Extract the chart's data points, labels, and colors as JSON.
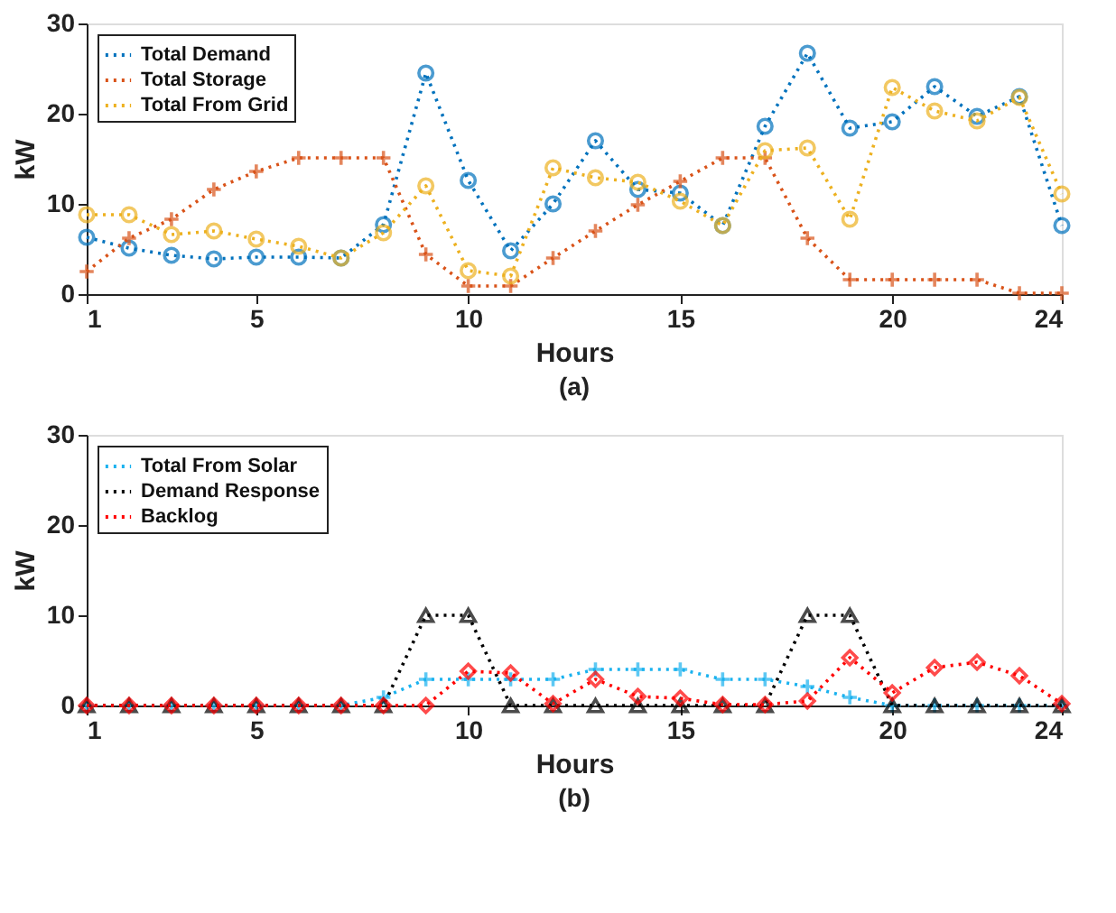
{
  "chart_data": [
    {
      "type": "line",
      "xlabel": "Hours",
      "ylabel": "kW",
      "annotations": [
        "(a)"
      ],
      "x": [
        1,
        2,
        3,
        4,
        5,
        6,
        7,
        8,
        9,
        10,
        11,
        12,
        13,
        14,
        15,
        16,
        17,
        18,
        19,
        20,
        21,
        22,
        23,
        24
      ],
      "xlim": [
        1,
        24
      ],
      "xticks": [
        1,
        5,
        10,
        15,
        20,
        24
      ],
      "ylim": [
        0,
        30
      ],
      "yticks": [
        0,
        10,
        20,
        30
      ],
      "legend": "top left",
      "line_style": "dotted",
      "grid": false,
      "series": [
        {
          "name": "Total Demand",
          "color": "#0072bd",
          "marker": "circle",
          "values": [
            6.3,
            5.1,
            4.3,
            3.9,
            4.1,
            4.1,
            4.0,
            7.7,
            24.5,
            12.6,
            4.8,
            10.0,
            17.0,
            11.6,
            11.2,
            7.6,
            18.6,
            26.7,
            18.4,
            19.1,
            23.0,
            19.7,
            21.9,
            7.6
          ]
        },
        {
          "name": "Total Storage",
          "color": "#d95319",
          "marker": "cross",
          "values": [
            2.5,
            6.2,
            8.3,
            11.6,
            13.6,
            15.1,
            15.1,
            15.1,
            4.4,
            0.9,
            0.9,
            4.0,
            7.0,
            9.9,
            12.5,
            15.1,
            15.1,
            6.2,
            1.6,
            1.6,
            1.6,
            1.6,
            0.1,
            0.1
          ]
        },
        {
          "name": "Total From Grid",
          "color": "#edb120",
          "marker": "circle",
          "values": [
            8.8,
            8.8,
            6.6,
            7.0,
            6.1,
            5.3,
            4.0,
            6.8,
            12.0,
            2.6,
            2.0,
            14.0,
            12.9,
            12.4,
            10.3,
            7.6,
            15.9,
            16.2,
            8.3,
            22.9,
            20.3,
            19.2,
            21.8,
            11.1
          ]
        }
      ]
    },
    {
      "type": "line",
      "xlabel": "Hours",
      "ylabel": "kW",
      "annotations": [
        "(b)"
      ],
      "x": [
        1,
        2,
        3,
        4,
        5,
        6,
        7,
        8,
        9,
        10,
        11,
        12,
        13,
        14,
        15,
        16,
        17,
        18,
        19,
        20,
        21,
        22,
        23,
        24
      ],
      "xlim": [
        1,
        24
      ],
      "xticks": [
        1,
        5,
        10,
        15,
        20,
        24
      ],
      "ylim": [
        0,
        30
      ],
      "yticks": [
        0,
        10,
        20,
        30
      ],
      "legend": "top left",
      "line_style": "dotted",
      "grid": false,
      "series": [
        {
          "name": "Total From Solar",
          "color": "#1ab2ef",
          "marker": "cross",
          "values": [
            0,
            0,
            0,
            0,
            0,
            0,
            0,
            0.9,
            2.9,
            2.9,
            2.9,
            2.9,
            4.0,
            4.0,
            4.0,
            2.9,
            2.9,
            2.1,
            0.9,
            0,
            0,
            0,
            0,
            0
          ]
        },
        {
          "name": "Demand Response",
          "color": "#000000",
          "marker": "triangle",
          "values": [
            0,
            0,
            0,
            0,
            0,
            0,
            0,
            0,
            10,
            10,
            0,
            0,
            0,
            0,
            0,
            0,
            0,
            10,
            10,
            0,
            0,
            0,
            0,
            0
          ]
        },
        {
          "name": "Backlog",
          "color": "#ff0000",
          "marker": "diamond",
          "values": [
            0,
            0,
            0,
            0,
            0,
            0,
            0,
            0,
            0,
            3.8,
            3.6,
            0.2,
            2.9,
            1.0,
            0.8,
            0.1,
            0.1,
            0.5,
            5.3,
            1.4,
            4.2,
            4.8,
            3.3,
            0.2
          ]
        }
      ]
    }
  ]
}
